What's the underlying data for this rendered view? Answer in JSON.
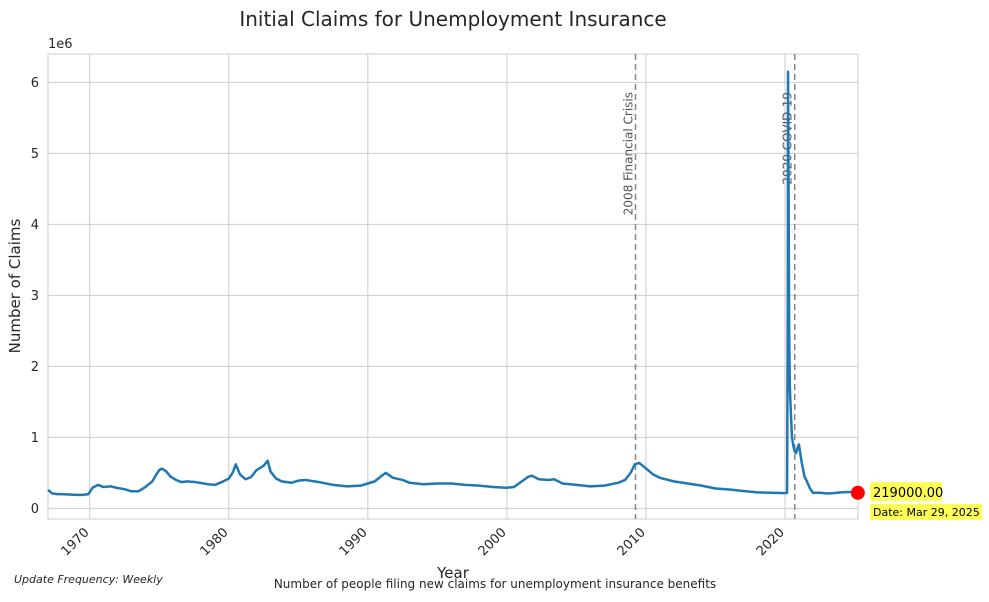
{
  "chart_data": {
    "type": "line",
    "title": "Initial Claims for Unemployment Insurance",
    "xlabel": "Year",
    "ylabel": "Number of Claims",
    "y_scale_label": "1e6",
    "y_scale": 1000000,
    "xlim": [
      1967,
      2025.25
    ],
    "ylim": [
      -150000,
      6400000
    ],
    "x_ticks": [
      1970,
      1980,
      1990,
      2000,
      2010,
      2020
    ],
    "y_ticks": [
      0,
      1,
      2,
      3,
      4,
      5,
      6
    ],
    "grid": true,
    "series": [
      {
        "color": "#1f77b4",
        "x": [
          1967.0,
          1967.3,
          1967.7,
          1968.0,
          1968.5,
          1969.0,
          1969.5,
          1969.9,
          1970.2,
          1970.6,
          1971.0,
          1971.5,
          1971.9,
          1972.5,
          1973.0,
          1973.5,
          1974.0,
          1974.5,
          1974.8,
          1975.0,
          1975.2,
          1975.5,
          1975.8,
          1976.2,
          1976.6,
          1977.0,
          1977.6,
          1977.9,
          1978.5,
          1979.0,
          1979.5,
          1980.0,
          1980.3,
          1980.5,
          1980.8,
          1981.2,
          1981.6,
          1982.0,
          1982.5,
          1982.8,
          1983.0,
          1983.4,
          1983.8,
          1984.5,
          1985.0,
          1985.5,
          1986.5,
          1987.5,
          1988.5,
          1989.5,
          1990.0,
          1990.5,
          1991.0,
          1991.3,
          1991.8,
          1992.5,
          1993.0,
          1994.0,
          1995.0,
          1996.0,
          1997.0,
          1998.0,
          1999.0,
          2000.0,
          2000.5,
          2001.0,
          2001.5,
          2001.8,
          2002.3,
          2003.0,
          2003.4,
          2004.0,
          2005.0,
          2006.0,
          2007.0,
          2008.0,
          2008.5,
          2008.9,
          2009.2,
          2009.5,
          2009.9,
          2010.5,
          2011.0,
          2012.0,
          2013.0,
          2014.0,
          2015.0,
          2016.0,
          2017.0,
          2018.0,
          2019.0,
          2020.0,
          2020.15,
          2020.2,
          2020.22,
          2020.25,
          2020.3,
          2020.35,
          2020.4,
          2020.5,
          2020.6,
          2020.7,
          2020.8,
          2020.9,
          2021.0,
          2021.2,
          2021.4,
          2021.6,
          2021.8,
          2022.0,
          2022.5,
          2023.0,
          2023.5,
          2024.0,
          2024.5,
          2025.0,
          2025.24
        ],
        "y": [
          260000,
          210000,
          200000,
          200000,
          195000,
          190000,
          190000,
          200000,
          290000,
          330000,
          300000,
          310000,
          290000,
          270000,
          240000,
          240000,
          300000,
          380000,
          480000,
          540000,
          560000,
          520000,
          450000,
          400000,
          370000,
          380000,
          370000,
          360000,
          340000,
          330000,
          370000,
          420000,
          510000,
          620000,
          480000,
          410000,
          440000,
          540000,
          600000,
          670000,
          520000,
          420000,
          380000,
          360000,
          390000,
          400000,
          370000,
          330000,
          310000,
          320000,
          350000,
          380000,
          460000,
          500000,
          430000,
          400000,
          360000,
          340000,
          350000,
          350000,
          330000,
          320000,
          300000,
          290000,
          300000,
          370000,
          440000,
          460000,
          410000,
          400000,
          410000,
          350000,
          330000,
          310000,
          320000,
          360000,
          400000,
          500000,
          620000,
          640000,
          580000,
          480000,
          430000,
          380000,
          350000,
          320000,
          280000,
          265000,
          245000,
          225000,
          220000,
          215000,
          220000,
          2900000,
          6150000,
          4800000,
          2500000,
          1700000,
          1450000,
          1000000,
          880000,
          800000,
          780000,
          850000,
          900000,
          650000,
          450000,
          370000,
          280000,
          220000,
          220000,
          210000,
          215000,
          225000,
          230000,
          225000,
          219000
        ]
      }
    ],
    "annotations": [
      {
        "x": 2009.25,
        "label": "2008 Financial Crisis"
      },
      {
        "x": 2020.7,
        "label": "2020 COVID-19"
      }
    ],
    "latest": {
      "x": 2025.24,
      "y": 219000,
      "value_label": "219000.00",
      "date_label": "Date: Mar 29, 2025",
      "color": "#ff0000",
      "box_color": "#ffff55"
    },
    "footer_left": "Update Frequency: Weekly",
    "footer_center": "Number of people filing new claims for unemployment insurance benefits"
  }
}
